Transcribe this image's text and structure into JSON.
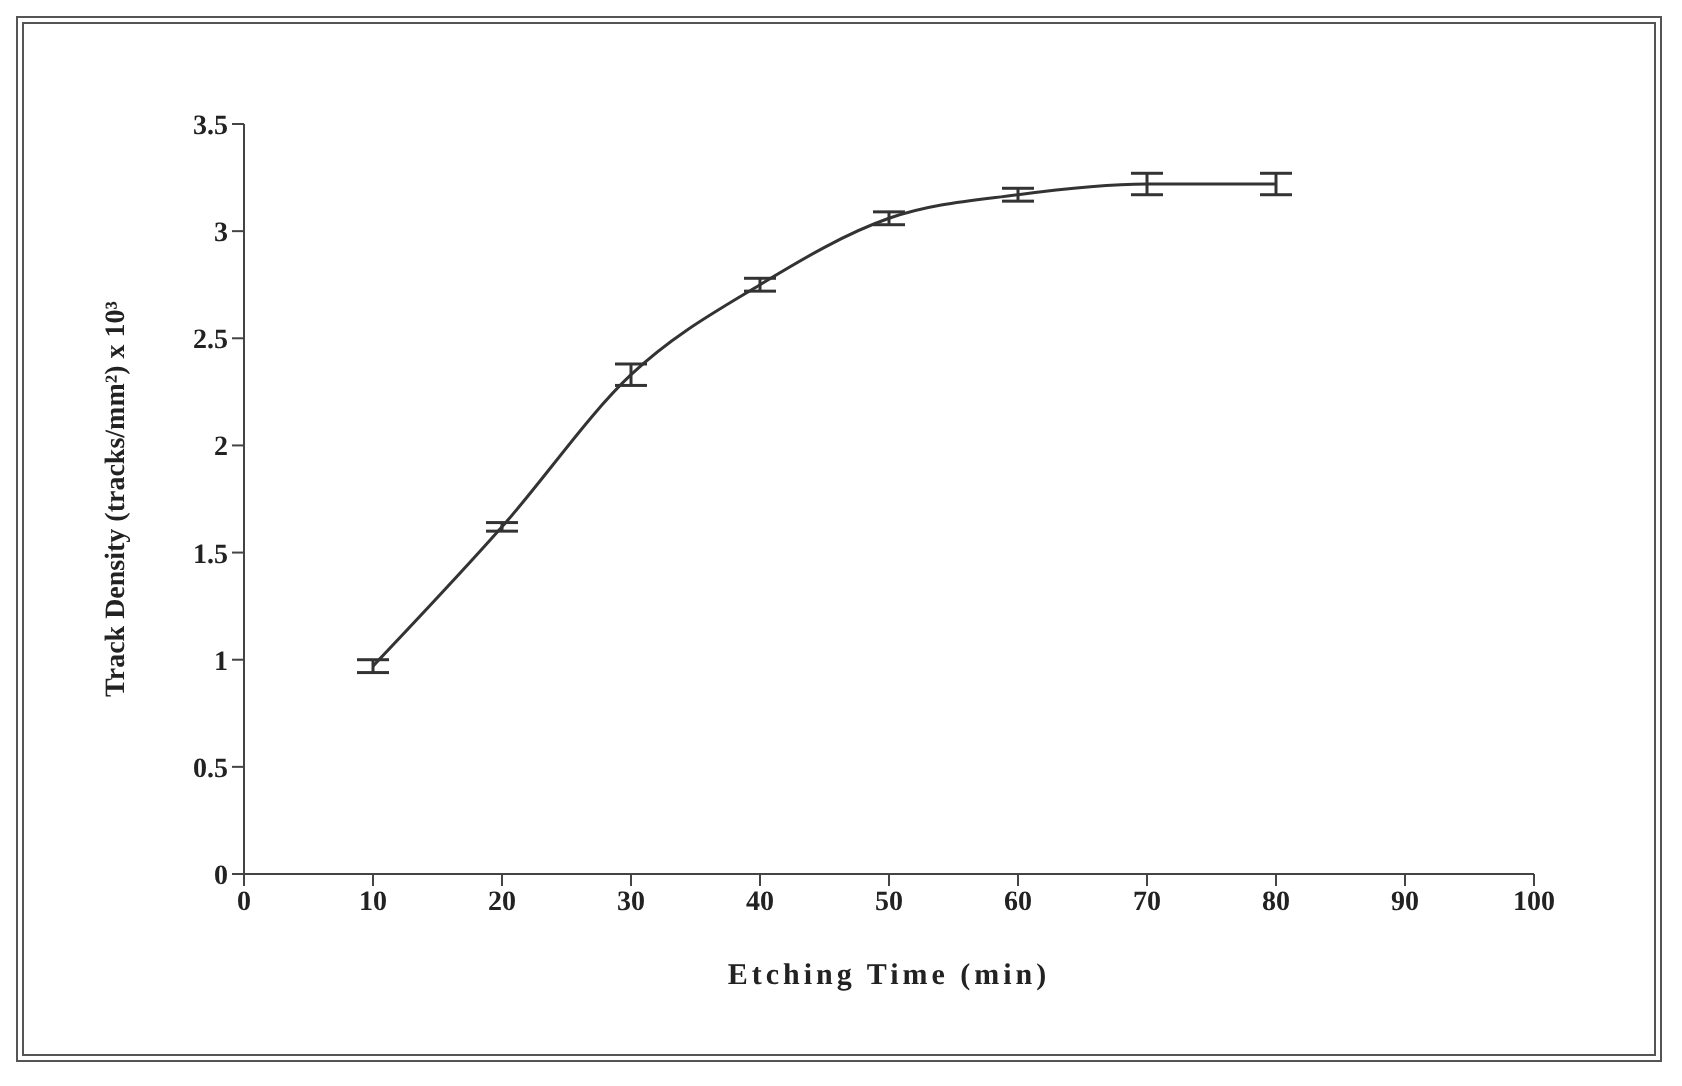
{
  "chart_data": {
    "type": "line",
    "xlabel": "Etching Time (min)",
    "ylabel": "Track Density (tracks/mm²) x 10³",
    "x": [
      10,
      20,
      30,
      40,
      50,
      60,
      70,
      80
    ],
    "series": [
      {
        "color": "#333333",
        "values": [
          0.97,
          1.62,
          2.33,
          2.75,
          3.06,
          3.17,
          3.22,
          3.22
        ],
        "errors": [
          0.03,
          0.02,
          0.05,
          0.03,
          0.03,
          0.03,
          0.05,
          0.05
        ]
      }
    ],
    "xlim": [
      0,
      100
    ],
    "xticks": [
      0,
      10,
      20,
      30,
      40,
      50,
      60,
      70,
      80,
      90,
      100
    ],
    "ylim": [
      0,
      3.5
    ],
    "yticks": [
      0,
      0.5,
      1,
      1.5,
      2,
      2.5,
      3,
      3.5
    ],
    "grid": false,
    "legend": false,
    "marker": "none",
    "line_style": "solid"
  }
}
